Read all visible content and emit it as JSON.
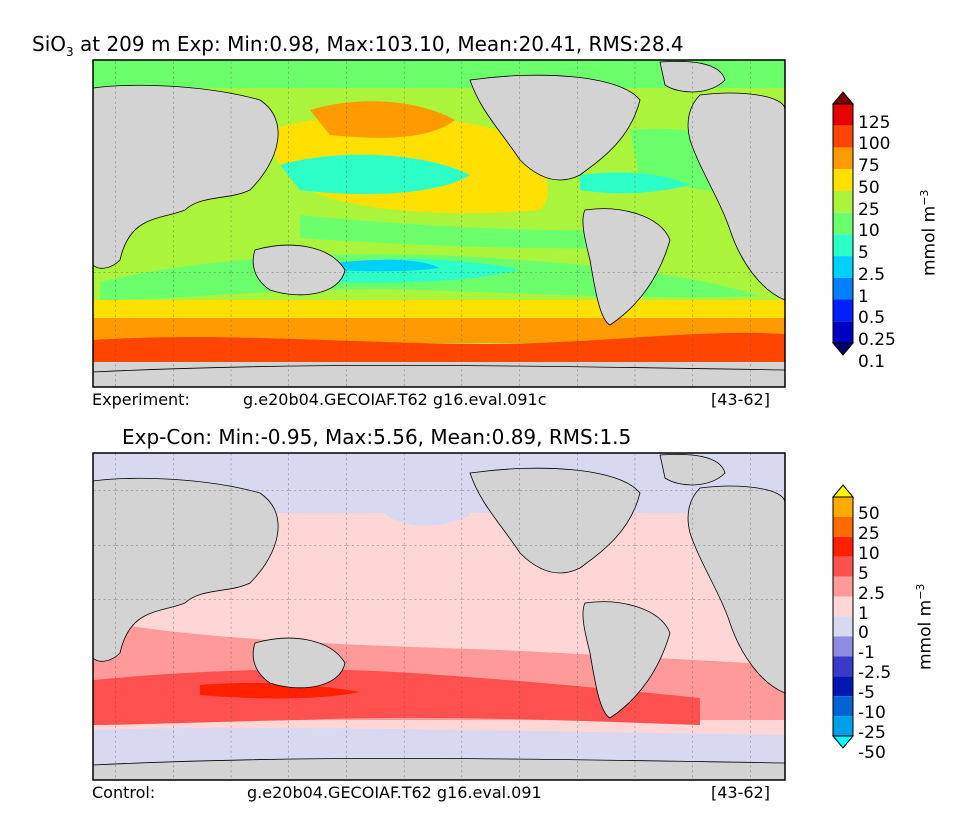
{
  "top_panel": {
    "title_prefix": "SiO",
    "title_sub": "3",
    "title_rest": " at 209 m Exp: Min:0.98, Max:103.10, Mean:20.41, RMS:28.4",
    "caption_left": "Experiment:",
    "caption_center": "g.e20b04.GECOIAF.T62 g16.eval.091c",
    "caption_right": "[43-62]",
    "colorbar": {
      "unit_text": "mmol m",
      "unit_sup": "−3",
      "levels": [
        "125",
        "100",
        "75",
        "50",
        "25",
        "10",
        "5",
        "2.5",
        "1",
        "0.5",
        "0.25",
        "0.1"
      ],
      "colors": [
        "#7a0000",
        "#e60000",
        "#ff4500",
        "#ff9a00",
        "#ffe000",
        "#aaf53b",
        "#6cff6c",
        "#2dffc8",
        "#00d0ff",
        "#0080ff",
        "#0020ff",
        "#0000c0",
        "#000070"
      ]
    }
  },
  "bottom_panel": {
    "title": "Exp-Con: Min:-0.95, Max:5.56, Mean:0.89, RMS:1.5",
    "caption_left": "Control:",
    "caption_center": "g.e20b04.GECOIAF.T62 g16.eval.091",
    "caption_right": "[43-62]",
    "colorbar": {
      "unit_text": "mmol m",
      "unit_sup": "−3",
      "levels": [
        "50",
        "25",
        "10",
        "5",
        "2.5",
        "1",
        "0",
        "-1",
        "-2.5",
        "-5",
        "-10",
        "-25",
        "-50"
      ],
      "colors": [
        "#ffff00",
        "#ffaa00",
        "#ff6a00",
        "#ff2000",
        "#ff5050",
        "#ff9a9a",
        "#ffd6d6",
        "#d8d8f0",
        "#8c8ce0",
        "#3a3ac8",
        "#0018b0",
        "#0064d2",
        "#00a0e8",
        "#00ffff"
      ]
    }
  }
}
